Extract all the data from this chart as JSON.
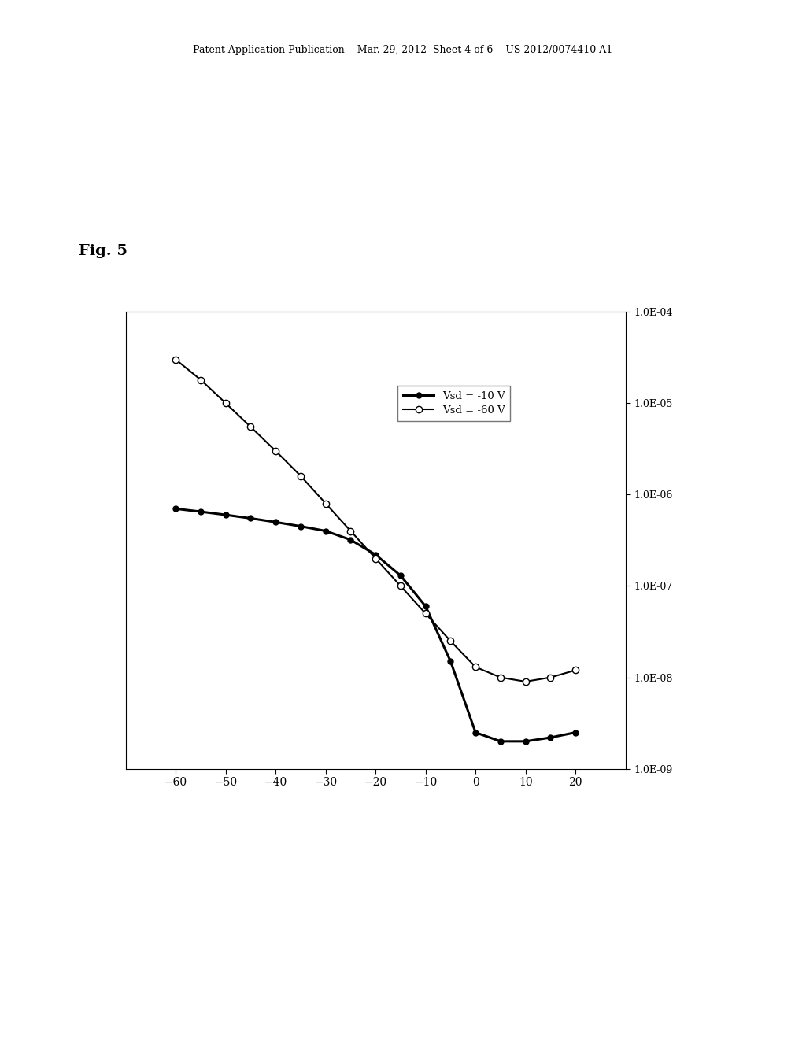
{
  "header_text": "Patent Application Publication    Mar. 29, 2012  Sheet 4 of 6    US 2012/0074410 A1",
  "fig_label": "Fig. 5",
  "xlim": [
    -70,
    30
  ],
  "xticks": [
    -60,
    -50,
    -40,
    -30,
    -20,
    -10,
    0,
    10,
    20
  ],
  "ytick_labels": [
    "1.0E-09",
    "1.0E-08",
    "1.0E-07",
    "1.0E-06",
    "1.0E-05",
    "1.0E-04"
  ],
  "ytick_vals": [
    1e-09,
    1e-08,
    1e-07,
    1e-06,
    1e-05,
    0.0001
  ],
  "series1_label": "Vsd = -10 V",
  "series2_label": "Vsd = -60 V",
  "series1_x": [
    -60,
    -55,
    -50,
    -45,
    -40,
    -35,
    -30,
    -25,
    -20,
    -15,
    -10,
    -5,
    0,
    5,
    10,
    15,
    20
  ],
  "series1_y": [
    7e-07,
    6.5e-07,
    6e-07,
    5.5e-07,
    5e-07,
    4.5e-07,
    4e-07,
    3.2e-07,
    2.2e-07,
    1.3e-07,
    6e-08,
    1.5e-08,
    2.5e-09,
    2e-09,
    2e-09,
    2.2e-09,
    2.5e-09
  ],
  "series2_x": [
    -60,
    -55,
    -50,
    -45,
    -40,
    -35,
    -30,
    -25,
    -20,
    -15,
    -10,
    -5,
    0,
    5,
    10,
    15,
    20
  ],
  "series2_y": [
    3e-05,
    1.8e-05,
    1e-05,
    5.5e-06,
    3e-06,
    1.6e-06,
    8e-07,
    4e-07,
    2e-07,
    1e-07,
    5e-08,
    2.5e-08,
    1.3e-08,
    1e-08,
    9e-09,
    1e-08,
    1.2e-08
  ],
  "line_color": "#000000",
  "background_color": "#ffffff"
}
